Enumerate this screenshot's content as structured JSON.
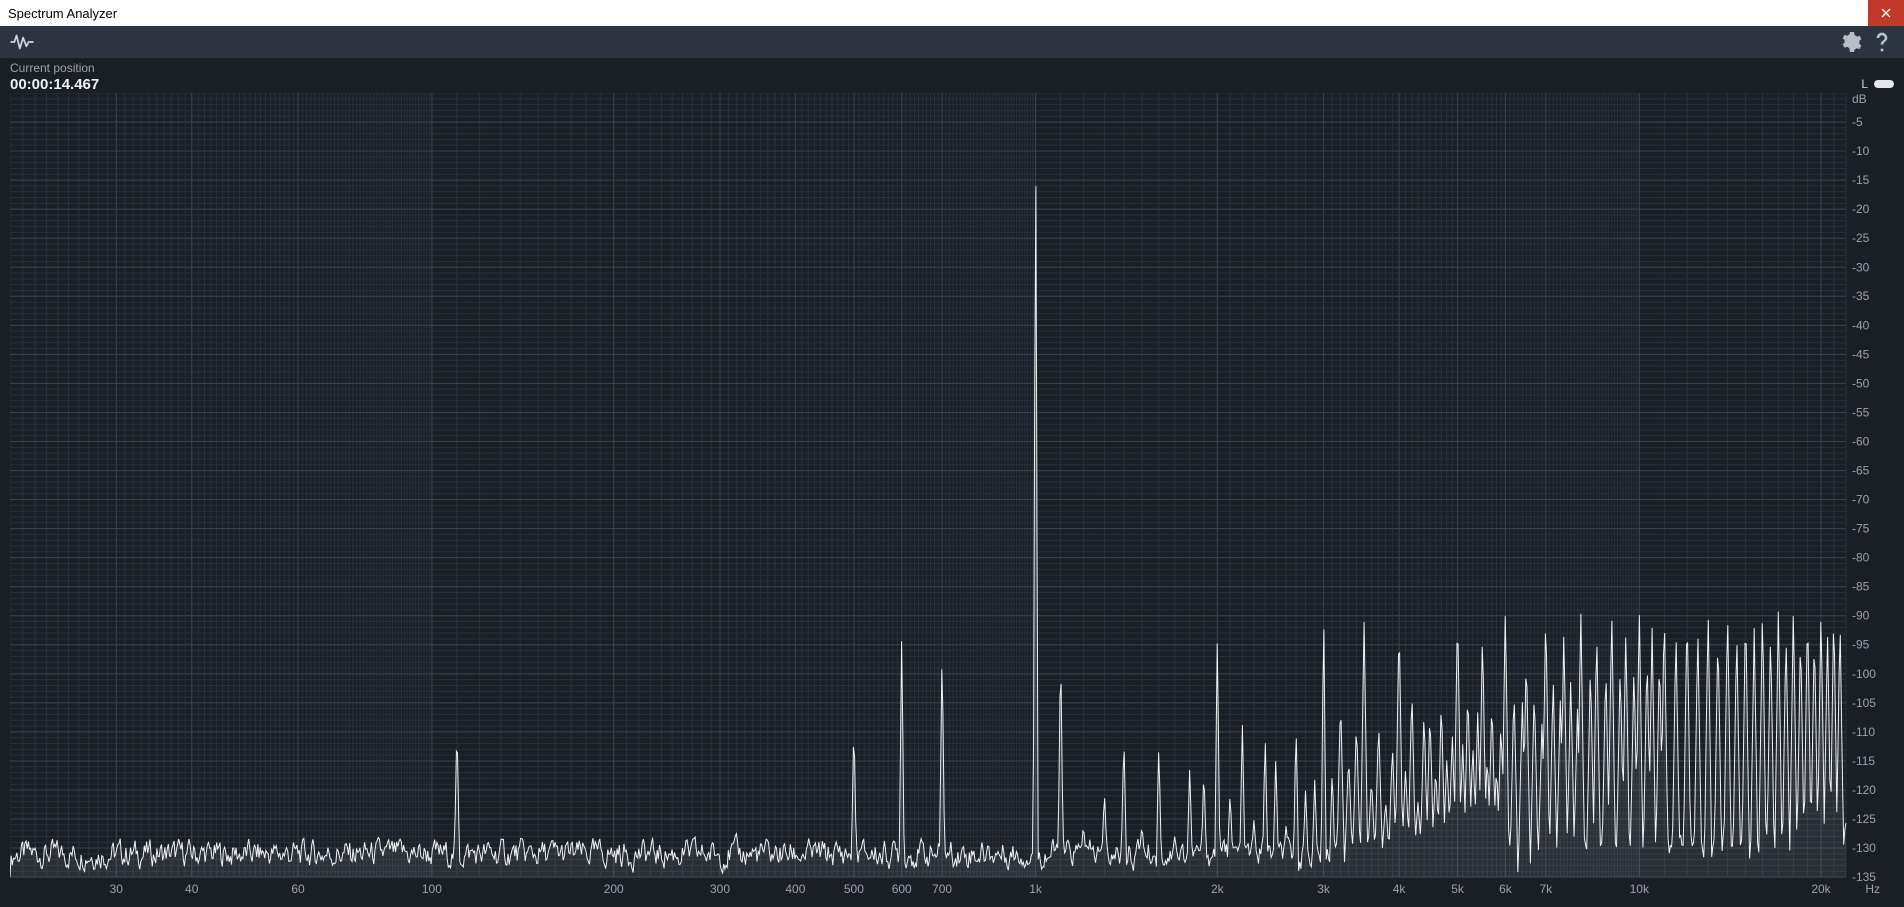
{
  "window": {
    "title": "Spectrum Analyzer"
  },
  "toolbar": {
    "wave_icon": "waveform-icon",
    "settings_icon": "gear-icon",
    "help_icon": "help-icon"
  },
  "info": {
    "position_label": "Current position",
    "position_value": "00:00:14.467",
    "channel_label": "L"
  },
  "chart": {
    "type": "spectrum",
    "background_color": "#1a1f26",
    "grid_major_color": "#3a414b",
    "grid_minor_color": "#2a303a",
    "trace_color": "#f0f2f4",
    "x_axis": {
      "scale": "log",
      "min_hz": 20,
      "max_hz": 22000,
      "unit_label": "Hz",
      "major_ticks_hz": [
        30,
        40,
        60,
        100,
        200,
        300,
        400,
        500,
        600,
        700,
        1000,
        2000,
        3000,
        4000,
        5000,
        6000,
        7000,
        10000,
        20000
      ],
      "major_tick_labels": [
        "30",
        "40",
        "60",
        "100",
        "200",
        "300",
        "400",
        "500",
        "600",
        "700",
        "1k",
        "2k",
        "3k",
        "4k",
        "5k",
        "6k",
        "7k",
        "10k",
        "20k"
      ]
    },
    "y_axis": {
      "scale": "linear",
      "min_db": -135,
      "max_db": 0,
      "unit_label": "dB",
      "major_ticks_db": [
        -5,
        -10,
        -15,
        -20,
        -25,
        -30,
        -35,
        -40,
        -45,
        -50,
        -55,
        -60,
        -65,
        -70,
        -75,
        -80,
        -85,
        -90,
        -95,
        -100,
        -105,
        -110,
        -115,
        -120,
        -125,
        -130,
        -135
      ]
    },
    "noise_floor_db": -131,
    "noise_variation_db": 4,
    "peaks": [
      {
        "hz": 110,
        "db": -108
      },
      {
        "hz": 500,
        "db": -108
      },
      {
        "hz": 600,
        "db": -93
      },
      {
        "hz": 700,
        "db": -94
      },
      {
        "hz": 1000,
        "db": -3
      },
      {
        "hz": 1100,
        "db": -94
      },
      {
        "hz": 1200,
        "db": -126
      },
      {
        "hz": 1300,
        "db": -120
      },
      {
        "hz": 1400,
        "db": -110
      },
      {
        "hz": 1500,
        "db": -126
      },
      {
        "hz": 1600,
        "db": -112
      },
      {
        "hz": 1700,
        "db": -128
      },
      {
        "hz": 1800,
        "db": -116
      },
      {
        "hz": 1900,
        "db": -116
      },
      {
        "hz": 2000,
        "db": -92
      },
      {
        "hz": 2100,
        "db": -120
      },
      {
        "hz": 2200,
        "db": -108
      },
      {
        "hz": 2300,
        "db": -125
      },
      {
        "hz": 2400,
        "db": -110
      },
      {
        "hz": 2500,
        "db": -114
      },
      {
        "hz": 2600,
        "db": -126
      },
      {
        "hz": 2700,
        "db": -108
      },
      {
        "hz": 2800,
        "db": -120
      },
      {
        "hz": 2900,
        "db": -118
      },
      {
        "hz": 3000,
        "db": -88
      },
      {
        "hz": 3100,
        "db": -116
      },
      {
        "hz": 3200,
        "db": -104
      },
      {
        "hz": 3300,
        "db": -114
      },
      {
        "hz": 3400,
        "db": -108
      },
      {
        "hz": 3500,
        "db": -91
      },
      {
        "hz": 3600,
        "db": -118
      },
      {
        "hz": 3700,
        "db": -108
      },
      {
        "hz": 3800,
        "db": -122
      },
      {
        "hz": 3900,
        "db": -112
      },
      {
        "hz": 4000,
        "db": -90
      },
      {
        "hz": 4100,
        "db": -116
      },
      {
        "hz": 4200,
        "db": -102
      },
      {
        "hz": 4300,
        "db": -122
      },
      {
        "hz": 4400,
        "db": -106
      },
      {
        "hz": 4500,
        "db": -106
      },
      {
        "hz": 4600,
        "db": -116
      },
      {
        "hz": 4700,
        "db": -104
      },
      {
        "hz": 4800,
        "db": -114
      },
      {
        "hz": 4900,
        "db": -110
      },
      {
        "hz": 5000,
        "db": -88
      },
      {
        "hz": 5100,
        "db": -112
      },
      {
        "hz": 5200,
        "db": -102
      },
      {
        "hz": 5300,
        "db": -112
      },
      {
        "hz": 5400,
        "db": -106
      },
      {
        "hz": 5500,
        "db": -92
      },
      {
        "hz": 5600,
        "db": -114
      },
      {
        "hz": 5700,
        "db": -104
      },
      {
        "hz": 5800,
        "db": -116
      },
      {
        "hz": 5900,
        "db": -108
      },
      {
        "hz": 6000,
        "db": -88
      },
      {
        "hz": 6200,
        "db": -102
      },
      {
        "hz": 6400,
        "db": -104
      },
      {
        "hz": 6500,
        "db": -96
      },
      {
        "hz": 6700,
        "db": -102
      },
      {
        "hz": 6900,
        "db": -108
      },
      {
        "hz": 7000,
        "db": -88
      },
      {
        "hz": 7200,
        "db": -100
      },
      {
        "hz": 7400,
        "db": -104
      },
      {
        "hz": 7500,
        "db": -92
      },
      {
        "hz": 7700,
        "db": -100
      },
      {
        "hz": 7900,
        "db": -106
      },
      {
        "hz": 8000,
        "db": -88
      },
      {
        "hz": 8300,
        "db": -98
      },
      {
        "hz": 8500,
        "db": -92
      },
      {
        "hz": 8800,
        "db": -98
      },
      {
        "hz": 9000,
        "db": -88
      },
      {
        "hz": 9300,
        "db": -98
      },
      {
        "hz": 9500,
        "db": -92
      },
      {
        "hz": 9800,
        "db": -98
      },
      {
        "hz": 10000,
        "db": -88
      },
      {
        "hz": 10300,
        "db": -96
      },
      {
        "hz": 10500,
        "db": -92
      },
      {
        "hz": 10800,
        "db": -96
      },
      {
        "hz": 11000,
        "db": -88
      },
      {
        "hz": 11500,
        "db": -92
      },
      {
        "hz": 12000,
        "db": -88
      },
      {
        "hz": 12500,
        "db": -92
      },
      {
        "hz": 13000,
        "db": -88
      },
      {
        "hz": 13500,
        "db": -92
      },
      {
        "hz": 14000,
        "db": -88
      },
      {
        "hz": 14500,
        "db": -92
      },
      {
        "hz": 15000,
        "db": -88
      },
      {
        "hz": 15500,
        "db": -92
      },
      {
        "hz": 16000,
        "db": -88
      },
      {
        "hz": 16500,
        "db": -92
      },
      {
        "hz": 17000,
        "db": -88
      },
      {
        "hz": 17500,
        "db": -92
      },
      {
        "hz": 18000,
        "db": -88
      },
      {
        "hz": 18500,
        "db": -92
      },
      {
        "hz": 19000,
        "db": -88
      },
      {
        "hz": 19500,
        "db": -92
      },
      {
        "hz": 20000,
        "db": -88
      },
      {
        "hz": 20500,
        "db": -92
      },
      {
        "hz": 21000,
        "db": -88
      },
      {
        "hz": 21500,
        "db": -90
      }
    ]
  }
}
